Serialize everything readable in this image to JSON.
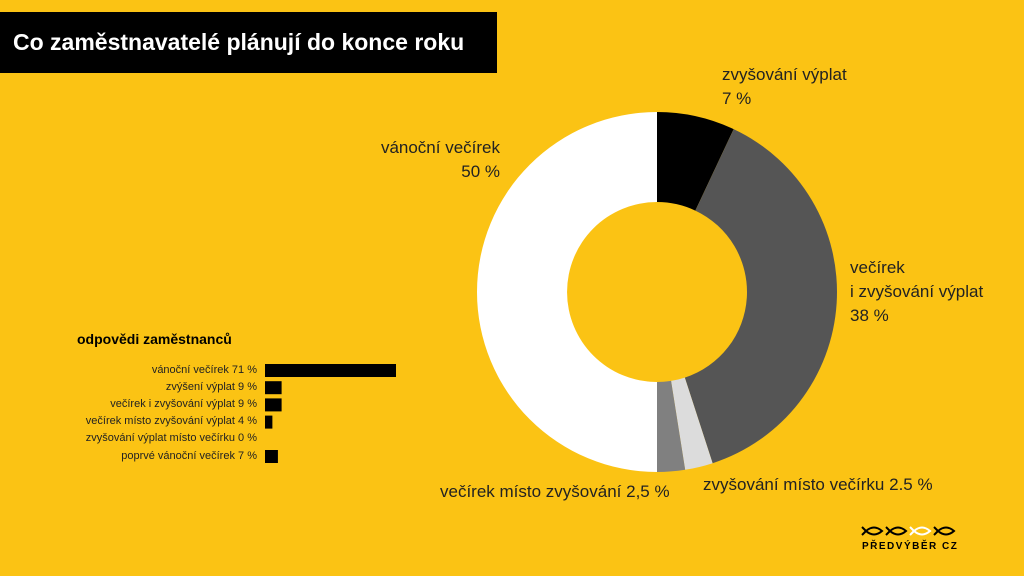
{
  "header": {
    "title": "Co zaměstnavatelé plánují do konce roku"
  },
  "chart_data": [
    {
      "type": "donut",
      "categories": [
        "zvyšování výplat",
        "večírek\ni zvyšování výplat",
        "zvyšování místo večírku",
        "večírek místo zvyšování",
        "vánoční večírek"
      ],
      "values": [
        7,
        38,
        2.5,
        2.5,
        50
      ],
      "value_labels": [
        "7 %",
        "38 %",
        "2.5 %",
        "2,5 %",
        "50 %"
      ],
      "colors": [
        "#000000",
        "#555555",
        "#dcdcdc",
        "#808080",
        "#ffffff"
      ]
    },
    {
      "type": "bar",
      "title": "odpovědi zaměstnanců",
      "categories": [
        "vánoční večírek",
        "zvýšení výplat",
        "večírek i zvyšování výplat",
        "večírek místo zvyšování výplat",
        "zvyšování výplat místo večírku",
        "poprvé vánoční večírek"
      ],
      "values": [
        71,
        9,
        9,
        4,
        0,
        7
      ],
      "value_labels": [
        "71 %",
        "9 %",
        "9 %",
        "4 %",
        "0 %",
        "7 %"
      ],
      "color": "#000000"
    }
  ],
  "logo": {
    "text": "PŘEDVÝBĚR CZ"
  }
}
